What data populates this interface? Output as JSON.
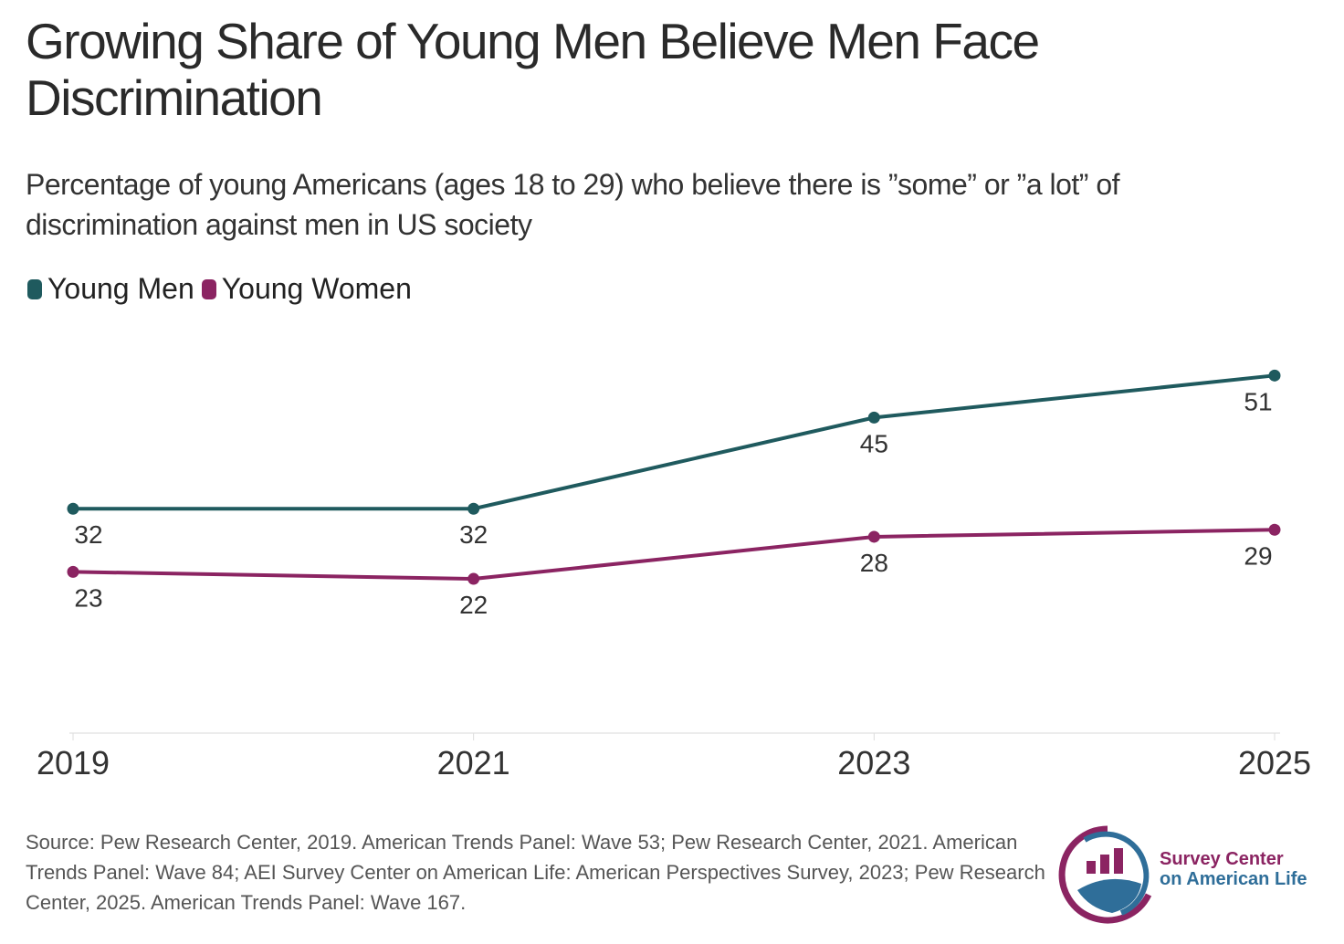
{
  "title": "Growing Share of Young Men Believe Men Face Discrimination",
  "subtitle": "Percentage of young Americans (ages 18 to 29) who believe there is ”some” or ”a lot” of discrimination against men in US society",
  "source": "Source: Pew Research Center, 2019. American Trends Panel: Wave 53; Pew Research Center, 2021. American Trends Panel: Wave 84; AEI Survey Center on American Life: American Perspectives Survey, 2023; Pew Research Center, 2025. American Trends Panel: Wave 167.",
  "logo": {
    "line1": "Survey Center",
    "line2": "on American Life"
  },
  "chart_data": {
    "type": "line",
    "categories": [
      "2019",
      "2021",
      "2023",
      "2025"
    ],
    "series": [
      {
        "name": "Young Men",
        "values": [
          32,
          32,
          45,
          51
        ],
        "color": "#1f5a5e"
      },
      {
        "name": "Young Women",
        "values": [
          23,
          22,
          28,
          29
        ],
        "color": "#8b2462"
      }
    ],
    "ylim": [
      0,
      60
    ],
    "grid": false,
    "legend": "top-left"
  }
}
